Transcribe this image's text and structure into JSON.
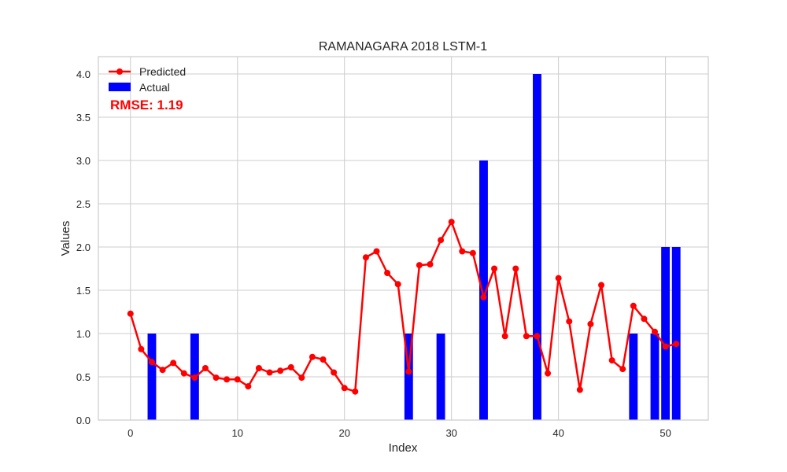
{
  "chart_data": {
    "type": "bar+line",
    "title": "RAMANAGARA 2018 LSTM-1",
    "xlabel": "Index",
    "ylabel": "Values",
    "xlim": [
      -3,
      54
    ],
    "ylim": [
      0,
      4.2
    ],
    "xticks": [
      0,
      10,
      20,
      30,
      40,
      50
    ],
    "yticks": [
      0.0,
      0.5,
      1.0,
      1.5,
      2.0,
      2.5,
      3.0,
      3.5,
      4.0
    ],
    "grid": true,
    "legend_position": "upper-left",
    "annotation": "RMSE: 1.19",
    "series": [
      {
        "name": "Predicted",
        "kind": "line",
        "color": "#ff0000",
        "x": [
          0,
          1,
          2,
          3,
          4,
          5,
          6,
          7,
          8,
          9,
          10,
          11,
          12,
          13,
          14,
          15,
          16,
          17,
          18,
          19,
          20,
          21,
          22,
          23,
          24,
          25,
          26,
          27,
          28,
          29,
          30,
          31,
          32,
          33,
          34,
          35,
          36,
          37,
          38,
          39,
          40,
          41,
          42,
          43,
          44,
          45,
          46,
          47,
          48,
          49,
          50,
          51
        ],
        "values": [
          1.23,
          0.82,
          0.67,
          0.58,
          0.66,
          0.54,
          0.49,
          0.6,
          0.49,
          0.47,
          0.47,
          0.39,
          0.6,
          0.55,
          0.57,
          0.61,
          0.49,
          0.73,
          0.7,
          0.55,
          0.37,
          0.33,
          1.88,
          1.95,
          1.7,
          1.57,
          0.56,
          1.79,
          1.8,
          2.08,
          2.29,
          1.95,
          1.93,
          1.42,
          1.75,
          0.97,
          1.75,
          0.97,
          0.97,
          0.54,
          1.64,
          1.14,
          0.35,
          1.11,
          1.56,
          0.69,
          0.59,
          1.32,
          1.17,
          1.02,
          0.85,
          0.88
        ]
      },
      {
        "name": "Actual",
        "kind": "bar",
        "color": "#0000ff",
        "x": [
          2,
          6,
          26,
          29,
          33,
          38,
          47,
          49,
          50,
          51
        ],
        "values": [
          1,
          1,
          1,
          1,
          3,
          4,
          1,
          1,
          2,
          2
        ]
      }
    ]
  }
}
